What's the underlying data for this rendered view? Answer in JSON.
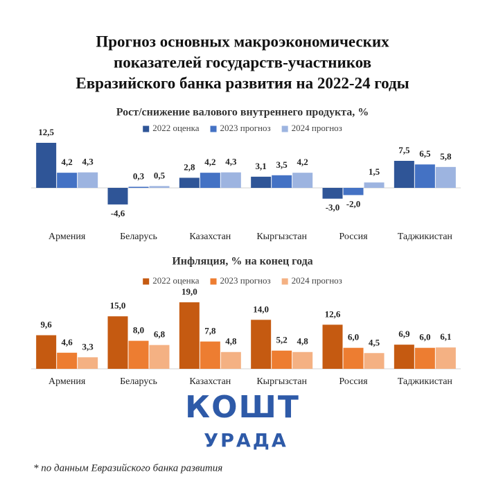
{
  "title": [
    "Прогноз основных макроэкономических",
    "показателей государств-участников",
    "Евразийского банка развития на 2022-24 годы"
  ],
  "chart_data": [
    {
      "type": "bar",
      "title": "Рост/снижение валового внутреннего продукта, %",
      "categories": [
        "Армения",
        "Беларусь",
        "Казахстан",
        "Кыргызстан",
        "Россия",
        "Таджикистан"
      ],
      "series": [
        {
          "name": "2022 оценка",
          "color": "#2f5597",
          "values": [
            12.5,
            -4.6,
            2.8,
            3.1,
            -3.0,
            7.5
          ],
          "value_labels": [
            "12,5",
            "-4,6",
            "2,8",
            "3,1",
            "-3,0",
            "7,5"
          ]
        },
        {
          "name": "2023 прогноз",
          "color": "#4472c4",
          "values": [
            4.2,
            0.3,
            4.2,
            3.5,
            -2.0,
            6.5
          ],
          "value_labels": [
            "4,2",
            "0,3",
            "4,2",
            "3,5",
            "-2,0",
            "6,5"
          ]
        },
        {
          "name": "2024 прогноз",
          "color": "#9db4e0",
          "values": [
            4.3,
            0.5,
            4.3,
            4.2,
            1.5,
            5.8
          ],
          "value_labels": [
            "4,3",
            "0,5",
            "4,3",
            "4,2",
            "1,5",
            "5,8"
          ]
        }
      ]
    },
    {
      "type": "bar",
      "title": "Инфляция, % на конец года",
      "categories": [
        "Армения",
        "Беларусь",
        "Казахстан",
        "Кыргызстан",
        "Россия",
        "Таджикистан"
      ],
      "series": [
        {
          "name": "2022 оценка",
          "color": "#c55a11",
          "values": [
            9.6,
            15.0,
            19.0,
            14.0,
            12.6,
            6.9
          ],
          "value_labels": [
            "9,6",
            "15,0",
            "19,0",
            "14,0",
            "12,6",
            "6,9"
          ]
        },
        {
          "name": "2023 прогноз",
          "color": "#ed7d31",
          "values": [
            4.6,
            8.0,
            7.8,
            5.2,
            6.0,
            6.0
          ],
          "value_labels": [
            "4,6",
            "8,0",
            "7,8",
            "5,2",
            "6,0",
            "6,0"
          ]
        },
        {
          "name": "2024 прогноз",
          "color": "#f4b183",
          "values": [
            3.3,
            6.8,
            4.8,
            4.8,
            4.5,
            6.1
          ],
          "value_labels": [
            "3,3",
            "6,8",
            "4,8",
            "4,8",
            "4,5",
            "6,1"
          ]
        }
      ]
    }
  ],
  "logo": {
    "top": "КОШТ",
    "bottom": "УРАДА"
  },
  "footnote": "* по данным Евразийского банка развития"
}
